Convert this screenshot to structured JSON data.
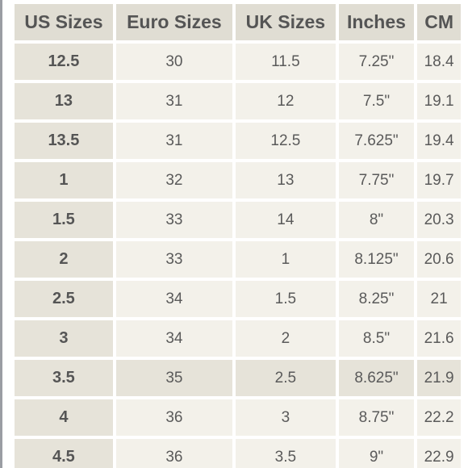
{
  "table": {
    "headers": [
      "US Sizes",
      "Euro Sizes",
      "UK Sizes",
      "Inches",
      "CM"
    ],
    "highlighted_row_index": 8,
    "rows": [
      [
        "12.5",
        "30",
        "11.5",
        "7.25\"",
        "18.4"
      ],
      [
        "13",
        "31",
        "12",
        "7.5\"",
        "19.1"
      ],
      [
        "13.5",
        "31",
        "12.5",
        "7.625\"",
        "19.4"
      ],
      [
        "1",
        "32",
        "13",
        "7.75\"",
        "19.7"
      ],
      [
        "1.5",
        "33",
        "14",
        "8\"",
        "20.3"
      ],
      [
        "2",
        "33",
        "1",
        "8.125\"",
        "20.6"
      ],
      [
        "2.5",
        "34",
        "1.5",
        "8.25\"",
        "21"
      ],
      [
        "3",
        "34",
        "2",
        "8.5\"",
        "21.6"
      ],
      [
        "3.5",
        "35",
        "2.5",
        "8.625\"",
        "21.9"
      ],
      [
        "4",
        "36",
        "3",
        "8.75\"",
        "22.2"
      ],
      [
        "4.5",
        "36",
        "3.5",
        "9\"",
        "22.9"
      ]
    ]
  },
  "colors": {
    "header_bg": "#e0ddd3",
    "first_col_bg": "#e6e3d9",
    "cell_bg": "#f3f1ea",
    "text": "#5a5a5a"
  }
}
